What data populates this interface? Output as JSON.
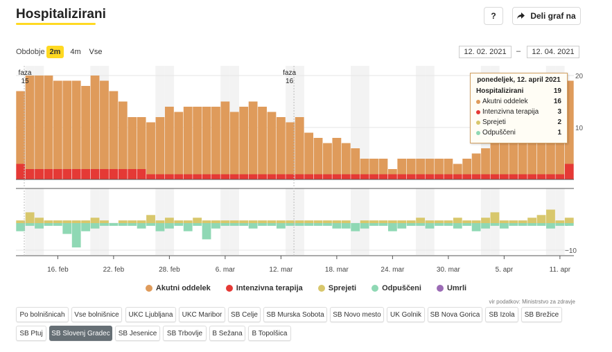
{
  "header": {
    "title": "Hospitalizirani",
    "help_label": "?",
    "share_label": "Deli graf na"
  },
  "period": {
    "label": "Obdobje",
    "options": [
      "2m",
      "4m",
      "Vse"
    ],
    "selected": "2m",
    "date_from": "12. 02. 2021",
    "date_sep": "–",
    "date_to": "12. 04. 2021"
  },
  "colors": {
    "acute": "#df9b5b",
    "icu": "#e53935",
    "admitted": "#d8c76c",
    "discharged": "#8fd8b4",
    "deceased": "#9b6bb5",
    "weekend_shade": "#f3f3f3"
  },
  "chart_data": [
    {
      "type": "bar",
      "stacked": true,
      "x_start": "2021-02-12",
      "x_end": "2021-04-12",
      "x_ticks": [
        "16. feb",
        "22. feb",
        "28. feb",
        "6. mar",
        "12. mar",
        "18. mar",
        "24. mar",
        "30. mar",
        "5. apr",
        "11. apr"
      ],
      "y_ticks": [
        10,
        20
      ],
      "ylim": [
        0,
        22
      ],
      "annotations": [
        {
          "date": "2021-02-12",
          "label": "faza",
          "value": "15"
        },
        {
          "date": "2021-03-13",
          "label": "faza",
          "value": "16"
        }
      ],
      "series": [
        {
          "name": "Akutni oddelek",
          "values": [
            14,
            18,
            18,
            18,
            17,
            17,
            17,
            16,
            18,
            17,
            15,
            13,
            10,
            10,
            10,
            11,
            13,
            12,
            13,
            13,
            13,
            13,
            14,
            12,
            13,
            14,
            13,
            12,
            11,
            10,
            11,
            8,
            7,
            6,
            7,
            6,
            5,
            3,
            3,
            3,
            1,
            3,
            3,
            3,
            3,
            3,
            3,
            2,
            3,
            4,
            5,
            7,
            9,
            9,
            9,
            9,
            11,
            12,
            14,
            16
          ]
        },
        {
          "name": "Intenzivna terapija",
          "values": [
            3,
            2,
            2,
            2,
            2,
            2,
            2,
            2,
            2,
            2,
            2,
            2,
            2,
            2,
            1,
            1,
            1,
            1,
            1,
            1,
            1,
            1,
            1,
            1,
            1,
            1,
            1,
            1,
            1,
            1,
            1,
            1,
            1,
            1,
            1,
            1,
            1,
            1,
            1,
            1,
            1,
            1,
            1,
            1,
            1,
            1,
            1,
            1,
            1,
            1,
            1,
            1,
            1,
            1,
            1,
            1,
            1,
            1,
            1,
            3
          ]
        }
      ]
    },
    {
      "type": "bar",
      "x_start": "2021-02-12",
      "x_end": "2021-04-12",
      "y_ticks": [
        0,
        -10
      ],
      "ylim": [
        -11,
        5
      ],
      "series": [
        {
          "name": "Sprejeti",
          "values": [
            1,
            4,
            2,
            1,
            1,
            1,
            1,
            1,
            2,
            1,
            0,
            1,
            1,
            1,
            3,
            1,
            2,
            1,
            1,
            2,
            1,
            1,
            1,
            1,
            1,
            1,
            1,
            1,
            1,
            1,
            1,
            1,
            1,
            1,
            1,
            1,
            0,
            1,
            1,
            1,
            1,
            1,
            1,
            2,
            1,
            1,
            1,
            2,
            1,
            1,
            2,
            4,
            1,
            1,
            1,
            2,
            3,
            5,
            1,
            2
          ]
        },
        {
          "name": "Odpuščeni",
          "values": [
            -3,
            -1,
            -2,
            -1,
            -1,
            -4,
            -9,
            -3,
            -2,
            -1,
            -1,
            -1,
            -1,
            -2,
            -1,
            -3,
            -2,
            -1,
            -3,
            -1,
            -6,
            -2,
            -1,
            -1,
            -1,
            -2,
            -1,
            -1,
            -2,
            -1,
            -1,
            -1,
            -1,
            -1,
            -2,
            -2,
            -3,
            -2,
            -1,
            -1,
            -3,
            -2,
            -1,
            -1,
            -2,
            -1,
            -1,
            -2,
            -1,
            -3,
            -2,
            -1,
            -2,
            -1,
            -1,
            -1,
            -1,
            -2,
            -1,
            -1
          ]
        }
      ]
    }
  ],
  "legend": [
    {
      "label": "Akutni oddelek",
      "color": "#df9b5b"
    },
    {
      "label": "Intenzivna terapija",
      "color": "#e53935"
    },
    {
      "label": "Sprejeti",
      "color": "#d8c76c"
    },
    {
      "label": "Odpuščeni",
      "color": "#8fd8b4"
    },
    {
      "label": "Umrli",
      "color": "#9b6bb5"
    }
  ],
  "source": "vir podatkov: Ministrstvo za zdravje",
  "tooltip": {
    "title": "ponedeljek, 12. april 2021",
    "rows": [
      {
        "label": "Hospitalizirani",
        "value": "19",
        "bold": true
      },
      {
        "label": "Akutni oddelek",
        "value": "16",
        "color": "#df9b5b"
      },
      {
        "label": "Intenzivna terapija",
        "value": "3",
        "color": "#e53935"
      },
      {
        "label": "Sprejeti",
        "value": "2",
        "color": "#d8c76c"
      },
      {
        "label": "Odpuščeni",
        "value": "1",
        "color": "#8fd8b4"
      }
    ]
  },
  "hospitals": [
    "Po bolnišnicah",
    "Vse bolnišnice",
    "UKC Ljubljana",
    "UKC Maribor",
    "SB Celje",
    "SB Murska Sobota",
    "SB Novo mesto",
    "UK Golnik",
    "SB Nova Gorica",
    "SB Izola",
    "SB Brežice",
    "SB Ptuj",
    "SB Slovenj Gradec",
    "SB Jesenice",
    "SB Trbovlje",
    "B Sežana",
    "B Topolšica"
  ],
  "hospitals_selected": "SB Slovenj Gradec"
}
